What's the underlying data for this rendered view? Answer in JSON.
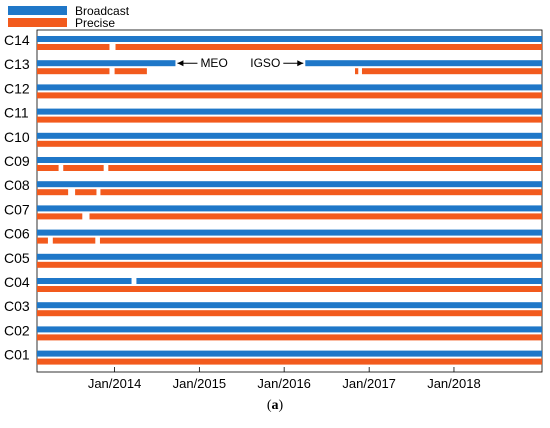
{
  "chart_data": {
    "type": "bar",
    "subtype": "availability-timeline",
    "title": "",
    "xlabel": "",
    "ylabel": "",
    "x_ticks": [
      "Jan/2014",
      "Jan/2015",
      "Jan/2016",
      "Jan/2017",
      "Jan/2018"
    ],
    "xlim": [
      "2013-02-01",
      "2019-01-15"
    ],
    "legend": {
      "placement": "top-left",
      "entries": [
        {
          "name": "Broadcast",
          "color": "#1f77c8"
        },
        {
          "name": "Precise",
          "color": "#f25a1d"
        }
      ]
    },
    "categories": [
      "C14",
      "C13",
      "C12",
      "C11",
      "C10",
      "C09",
      "C08",
      "C07",
      "C06",
      "C05",
      "C04",
      "C03",
      "C02",
      "C01"
    ],
    "series": [
      {
        "name": "Broadcast",
        "color": "#1f77c8",
        "data": [
          {
            "sat": "C14",
            "intervals": [
              [
                "2013-02-01",
                "2019-01-15"
              ]
            ]
          },
          {
            "sat": "C13",
            "intervals": [
              [
                "2013-02-01",
                "2014-09-20"
              ],
              [
                "2016-04-01",
                "2019-01-15"
              ]
            ]
          },
          {
            "sat": "C12",
            "intervals": [
              [
                "2013-02-01",
                "2019-01-15"
              ]
            ]
          },
          {
            "sat": "C11",
            "intervals": [
              [
                "2013-02-01",
                "2019-01-15"
              ]
            ]
          },
          {
            "sat": "C10",
            "intervals": [
              [
                "2013-02-01",
                "2019-01-15"
              ]
            ]
          },
          {
            "sat": "C09",
            "intervals": [
              [
                "2013-02-01",
                "2019-01-15"
              ]
            ]
          },
          {
            "sat": "C08",
            "intervals": [
              [
                "2013-02-01",
                "2019-01-15"
              ]
            ]
          },
          {
            "sat": "C07",
            "intervals": [
              [
                "2013-02-01",
                "2019-01-15"
              ]
            ]
          },
          {
            "sat": "C06",
            "intervals": [
              [
                "2013-02-01",
                "2019-01-15"
              ]
            ]
          },
          {
            "sat": "C05",
            "intervals": [
              [
                "2013-02-01",
                "2019-01-15"
              ]
            ]
          },
          {
            "sat": "C04",
            "intervals": [
              [
                "2013-02-01",
                "2014-03-15"
              ],
              [
                "2014-04-05",
                "2019-01-15"
              ]
            ]
          },
          {
            "sat": "C03",
            "intervals": [
              [
                "2013-02-01",
                "2019-01-15"
              ]
            ]
          },
          {
            "sat": "C02",
            "intervals": [
              [
                "2013-02-01",
                "2019-01-15"
              ]
            ]
          },
          {
            "sat": "C01",
            "intervals": [
              [
                "2013-02-01",
                "2019-01-15"
              ]
            ]
          }
        ]
      },
      {
        "name": "Precise",
        "color": "#f25a1d",
        "data": [
          {
            "sat": "C14",
            "intervals": [
              [
                "2013-02-01",
                "2013-12-10"
              ],
              [
                "2014-01-05",
                "2019-01-15"
              ]
            ]
          },
          {
            "sat": "C13",
            "intervals": [
              [
                "2013-02-01",
                "2013-12-10"
              ],
              [
                "2014-01-01",
                "2014-05-20"
              ],
              [
                "2016-11-01",
                "2016-11-15"
              ],
              [
                "2016-12-01",
                "2019-01-15"
              ]
            ]
          },
          {
            "sat": "C12",
            "intervals": [
              [
                "2013-02-01",
                "2019-01-15"
              ]
            ]
          },
          {
            "sat": "C11",
            "intervals": [
              [
                "2013-02-01",
                "2019-01-15"
              ]
            ]
          },
          {
            "sat": "C10",
            "intervals": [
              [
                "2013-02-01",
                "2019-01-15"
              ]
            ]
          },
          {
            "sat": "C09",
            "intervals": [
              [
                "2013-02-01",
                "2013-05-05"
              ],
              [
                "2013-05-25",
                "2013-11-15"
              ],
              [
                "2013-12-05",
                "2019-01-15"
              ]
            ]
          },
          {
            "sat": "C08",
            "intervals": [
              [
                "2013-02-01",
                "2013-06-15"
              ],
              [
                "2013-07-15",
                "2013-10-15"
              ],
              [
                "2013-11-01",
                "2019-01-15"
              ]
            ]
          },
          {
            "sat": "C07",
            "intervals": [
              [
                "2013-02-01",
                "2013-08-15"
              ],
              [
                "2013-09-15",
                "2019-01-15"
              ]
            ]
          },
          {
            "sat": "C06",
            "intervals": [
              [
                "2013-02-01",
                "2013-03-20"
              ],
              [
                "2013-04-10",
                "2013-10-10"
              ],
              [
                "2013-10-30",
                "2019-01-15"
              ]
            ]
          },
          {
            "sat": "C05",
            "intervals": [
              [
                "2013-02-01",
                "2019-01-15"
              ]
            ]
          },
          {
            "sat": "C04",
            "intervals": [
              [
                "2013-02-01",
                "2019-01-15"
              ]
            ]
          },
          {
            "sat": "C03",
            "intervals": [
              [
                "2013-02-01",
                "2019-01-15"
              ]
            ]
          },
          {
            "sat": "C02",
            "intervals": [
              [
                "2013-02-01",
                "2019-01-15"
              ]
            ]
          },
          {
            "sat": "C01",
            "intervals": [
              [
                "2013-02-01",
                "2019-01-15"
              ]
            ]
          }
        ]
      }
    ],
    "annotations": [
      {
        "text": "MEO",
        "sat": "C13",
        "arrow": "left",
        "at": "2014-09-20"
      },
      {
        "text": "IGSO",
        "sat": "C13",
        "arrow": "right",
        "at": "2016-04-01"
      }
    ],
    "grid": false
  },
  "caption": {
    "letter": "a"
  }
}
